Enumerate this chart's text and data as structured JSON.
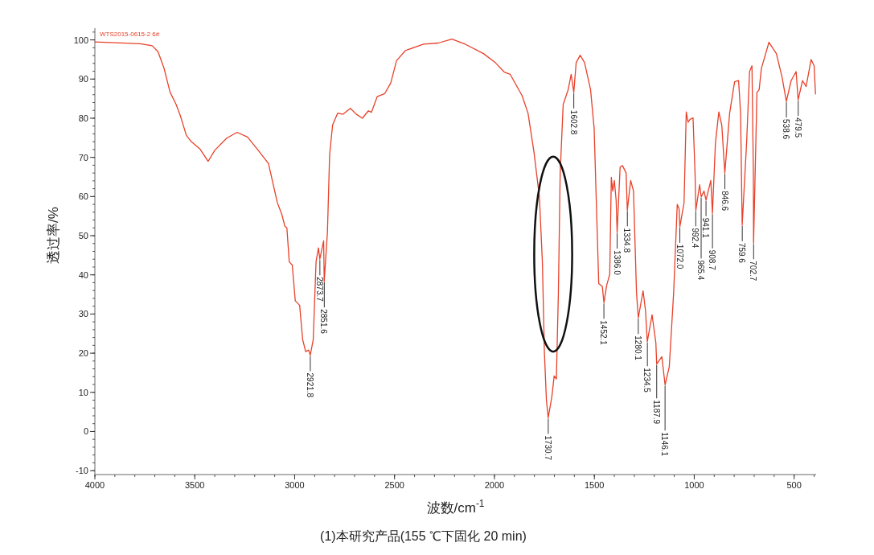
{
  "chart_data": {
    "type": "line",
    "xlabel": "波数/cm$^{-1}$",
    "ylabel": "透过率/%",
    "xlim": [
      4000,
      390
    ],
    "ylim": [
      -11,
      103
    ],
    "xticks": [
      4000,
      3500,
      3000,
      2500,
      2000,
      1500,
      1000,
      500
    ],
    "yticks": [
      -10,
      0,
      10,
      20,
      30,
      40,
      50,
      60,
      70,
      80,
      90,
      100
    ],
    "grid": false,
    "legend": "top left",
    "marker": "none",
    "line_style": "solid",
    "series": [
      {
        "name": "WTS2015-0615-2 6#",
        "color": "#e8412a",
        "x": [
          4000,
          3773,
          3713,
          3684,
          3654,
          3624,
          3594,
          3572,
          3542,
          3519,
          3475,
          3433,
          3400,
          3340,
          3288,
          3236,
          3176,
          3131,
          3087,
          3064,
          3049,
          3039,
          3027,
          3012,
          2997,
          2975,
          2960,
          2945,
          2930,
          2922,
          2907,
          2893,
          2881,
          2874,
          2855,
          2852,
          2836,
          2825,
          2810,
          2785,
          2758,
          2721,
          2691,
          2661,
          2631,
          2616,
          2587,
          2549,
          2519,
          2490,
          2445,
          2355,
          2281,
          2213,
          2146,
          2055,
          1996,
          1951,
          1921,
          1862,
          1832,
          1802,
          1775,
          1760,
          1750,
          1740,
          1731,
          1713,
          1701,
          1690,
          1680,
          1671,
          1656,
          1631,
          1616,
          1603,
          1591,
          1571,
          1549,
          1519,
          1501,
          1490,
          1478,
          1460,
          1452,
          1438,
          1423,
          1415,
          1408,
          1400,
          1391,
          1386,
          1371,
          1359,
          1341,
          1335,
          1318,
          1304,
          1289,
          1280,
          1256,
          1244,
          1235,
          1211,
          1192,
          1188,
          1162,
          1146,
          1125,
          1103,
          1085,
          1076,
          1072,
          1051,
          1040,
          1031,
          1021,
          1006,
          996,
          992,
          973,
          965,
          951,
          941,
          917,
          909,
          894,
          877,
          862,
          847,
          823,
          798,
          778,
          768,
          760,
          738,
          723,
          711,
          704,
          703,
          686,
          675,
          664,
          626,
          589,
          560,
          539,
          515,
          490,
          480,
          458,
          440,
          415,
          400,
          393
        ],
        "values": [
          99.5,
          99.0,
          98.5,
          97.0,
          92.8,
          86.7,
          83.6,
          80.6,
          75.6,
          74.1,
          72.2,
          69.0,
          71.8,
          74.9,
          76.4,
          75.2,
          71.4,
          68.4,
          58.5,
          55.4,
          52.4,
          52.0,
          43.3,
          42.5,
          33.4,
          32.2,
          23.5,
          20.4,
          20.8,
          19.5,
          23.5,
          43.3,
          46.9,
          44.0,
          48.7,
          38.3,
          50.9,
          70.7,
          78.3,
          81.3,
          81.0,
          82.5,
          81.0,
          80.0,
          81.9,
          81.5,
          85.5,
          86.3,
          89.0,
          94.7,
          97.3,
          98.9,
          99.2,
          100.2,
          98.9,
          96.5,
          94.2,
          91.8,
          91.2,
          85.8,
          81.3,
          71.3,
          59.9,
          43.1,
          20.3,
          8.1,
          3.5,
          8.8,
          14.2,
          13.4,
          35.5,
          66.0,
          83.5,
          87.3,
          91.2,
          86.6,
          94.2,
          96.1,
          94.2,
          87.3,
          77.4,
          58.4,
          37.8,
          37.0,
          32.9,
          37.4,
          40.1,
          64.9,
          61.4,
          64.1,
          59.1,
          50.8,
          67.5,
          67.9,
          66.0,
          56.5,
          64.1,
          61.4,
          35.5,
          29.0,
          35.9,
          30.9,
          22.9,
          29.8,
          22.6,
          17.2,
          19.1,
          11.9,
          16.5,
          35.5,
          58.0,
          56.9,
          52.3,
          58.4,
          81.6,
          79.0,
          79.7,
          80.1,
          66.0,
          56.5,
          63.0,
          59.9,
          61.4,
          59.1,
          64.1,
          55.7,
          73.6,
          81.6,
          78.2,
          66.0,
          81.2,
          89.3,
          89.6,
          81.2,
          52.7,
          73.6,
          91.9,
          93.4,
          66.0,
          48.1,
          86.6,
          87.3,
          92.7,
          99.4,
          96.5,
          90.4,
          84.3,
          89.6,
          91.9,
          84.7,
          89.6,
          88.1,
          95.0,
          93.4,
          86.2
        ]
      }
    ],
    "annotations": [
      {
        "text": "2921.8",
        "x": 2921.8,
        "y": 19.5
      },
      {
        "text": "2873.7",
        "x": 2873.7,
        "y": 44.0
      },
      {
        "text": "2851.6",
        "x": 2851.6,
        "y": 38.3
      },
      {
        "text": "1730.7",
        "x": 1730.7,
        "y": 3.5
      },
      {
        "text": "1602.8",
        "x": 1602.8,
        "y": 86.6
      },
      {
        "text": "1452.1",
        "x": 1452.1,
        "y": 32.9
      },
      {
        "text": "1386.0",
        "x": 1386.0,
        "y": 50.8
      },
      {
        "text": "1334.8",
        "x": 1334.8,
        "y": 56.5
      },
      {
        "text": "1280.1",
        "x": 1280.1,
        "y": 29.0
      },
      {
        "text": "1234.5",
        "x": 1234.5,
        "y": 22.9
      },
      {
        "text": "1187.9",
        "x": 1187.9,
        "y": 17.2
      },
      {
        "text": "1146.1",
        "x": 1146.1,
        "y": 11.9
      },
      {
        "text": "1072.0",
        "x": 1072.0,
        "y": 52.3
      },
      {
        "text": "992.4",
        "x": 992.4,
        "y": 56.5
      },
      {
        "text": "965.4",
        "x": 965.4,
        "y": 59.9
      },
      {
        "text": "941.1",
        "x": 941.1,
        "y": 59.1
      },
      {
        "text": "908.7",
        "x": 908.7,
        "y": 55.7
      },
      {
        "text": "846.6",
        "x": 846.6,
        "y": 66.0
      },
      {
        "text": "759.6",
        "x": 759.6,
        "y": 52.7
      },
      {
        "text": "702.7",
        "x": 702.7,
        "y": 48.1
      },
      {
        "text": "538.6",
        "x": 538.6,
        "y": 84.3
      },
      {
        "text": "479.5",
        "x": 479.5,
        "y": 84.7
      },
      "(1)本研究产品(155 ℃下固化 20 min)"
    ]
  }
}
